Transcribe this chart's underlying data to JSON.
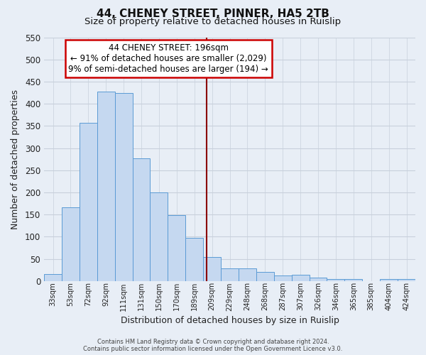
{
  "title": "44, CHENEY STREET, PINNER, HA5 2TB",
  "subtitle": "Size of property relative to detached houses in Ruislip",
  "xlabel": "Distribution of detached houses by size in Ruislip",
  "ylabel": "Number of detached properties",
  "categories": [
    "33sqm",
    "53sqm",
    "72sqm",
    "92sqm",
    "111sqm",
    "131sqm",
    "150sqm",
    "170sqm",
    "189sqm",
    "209sqm",
    "229sqm",
    "248sqm",
    "268sqm",
    "287sqm",
    "307sqm",
    "326sqm",
    "346sqm",
    "365sqm",
    "385sqm",
    "404sqm",
    "424sqm"
  ],
  "values": [
    15,
    167,
    357,
    428,
    425,
    277,
    200,
    149,
    97,
    54,
    28,
    28,
    21,
    12,
    14,
    7,
    5,
    4,
    0,
    5,
    5
  ],
  "bar_color": "#c5d8f0",
  "bar_edge_color": "#5b9bd5",
  "vline_x_index": 8.68,
  "vline_color": "#8b0000",
  "annotation_title": "44 CHENEY STREET: 196sqm",
  "annotation_line1": "← 91% of detached houses are smaller (2,029)",
  "annotation_line2": "9% of semi-detached houses are larger (194) →",
  "annotation_box_color": "#ffffff",
  "annotation_box_edge": "#cc0000",
  "ylim": [
    0,
    550
  ],
  "yticks": [
    0,
    50,
    100,
    150,
    200,
    250,
    300,
    350,
    400,
    450,
    500,
    550
  ],
  "grid_color": "#c8d0dc",
  "footer_line1": "Contains HM Land Registry data © Crown copyright and database right 2024.",
  "footer_line2": "Contains public sector information licensed under the Open Government Licence v3.0.",
  "bg_color": "#e8eef6",
  "plot_bg_color": "#e8eef6",
  "title_fontsize": 11,
  "subtitle_fontsize": 9.5
}
